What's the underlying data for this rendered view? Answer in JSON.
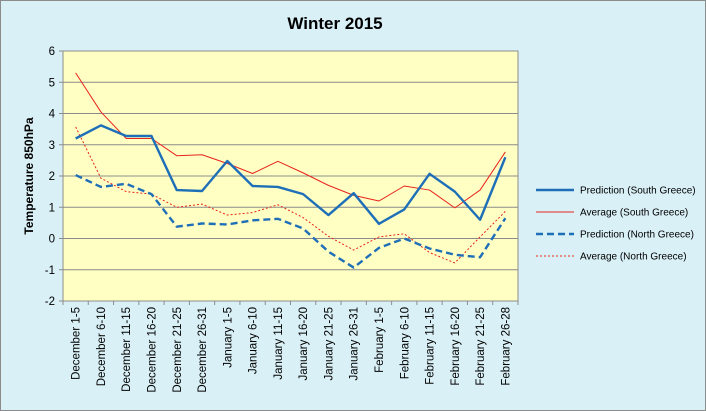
{
  "chart_data": {
    "type": "line",
    "title": "Winter 2015",
    "xlabel": "",
    "ylabel": "Temperature 850hPa",
    "ylim": [
      -2,
      6
    ],
    "yticks": [
      "-2",
      "-1",
      "0",
      "1",
      "2",
      "3",
      "4",
      "5",
      "6"
    ],
    "grid": true,
    "legend_position": "right",
    "categories": [
      "December 1-5",
      "December 6-10",
      "December 11-15",
      "December 16-20",
      "December 21-25",
      "December 26-31",
      "January 1-5",
      "January 6-10",
      "January 11-15",
      "January 16-20",
      "January 21-25",
      "January 26-31",
      "February 1-5",
      "February 6-10",
      "February 11-15",
      "February 16-20",
      "February 21-25",
      "February 26-28"
    ],
    "series": [
      {
        "name": "Prediction (South Greece)",
        "color": "#1f6fb8",
        "style": "solid-thick",
        "values": [
          3.2,
          3.62,
          3.28,
          3.28,
          1.55,
          1.52,
          2.48,
          1.68,
          1.65,
          1.42,
          0.75,
          1.45,
          0.47,
          0.93,
          2.07,
          1.5,
          0.6,
          2.6
        ]
      },
      {
        "name": "Average (South Greece)",
        "color": "#e8231e",
        "style": "solid-thin",
        "values": [
          5.3,
          4.05,
          3.2,
          3.2,
          2.65,
          2.68,
          2.4,
          2.08,
          2.47,
          2.1,
          1.7,
          1.38,
          1.2,
          1.68,
          1.55,
          0.98,
          1.55,
          2.77
        ]
      },
      {
        "name": "Prediction (North Greece)",
        "color": "#1f6fb8",
        "style": "dashed-thick",
        "values": [
          2.03,
          1.65,
          1.75,
          1.42,
          0.38,
          0.48,
          0.45,
          0.58,
          0.63,
          0.32,
          -0.42,
          -0.93,
          -0.3,
          0.0,
          -0.32,
          -0.52,
          -0.6,
          0.65
        ]
      },
      {
        "name": "Average (North Greece)",
        "color": "#e8231e",
        "style": "dotted-thin",
        "values": [
          3.57,
          1.93,
          1.5,
          1.42,
          1.0,
          1.1,
          0.75,
          0.83,
          1.08,
          0.67,
          0.07,
          -0.37,
          0.05,
          0.15,
          -0.45,
          -0.78,
          0.05,
          0.87
        ]
      }
    ]
  }
}
